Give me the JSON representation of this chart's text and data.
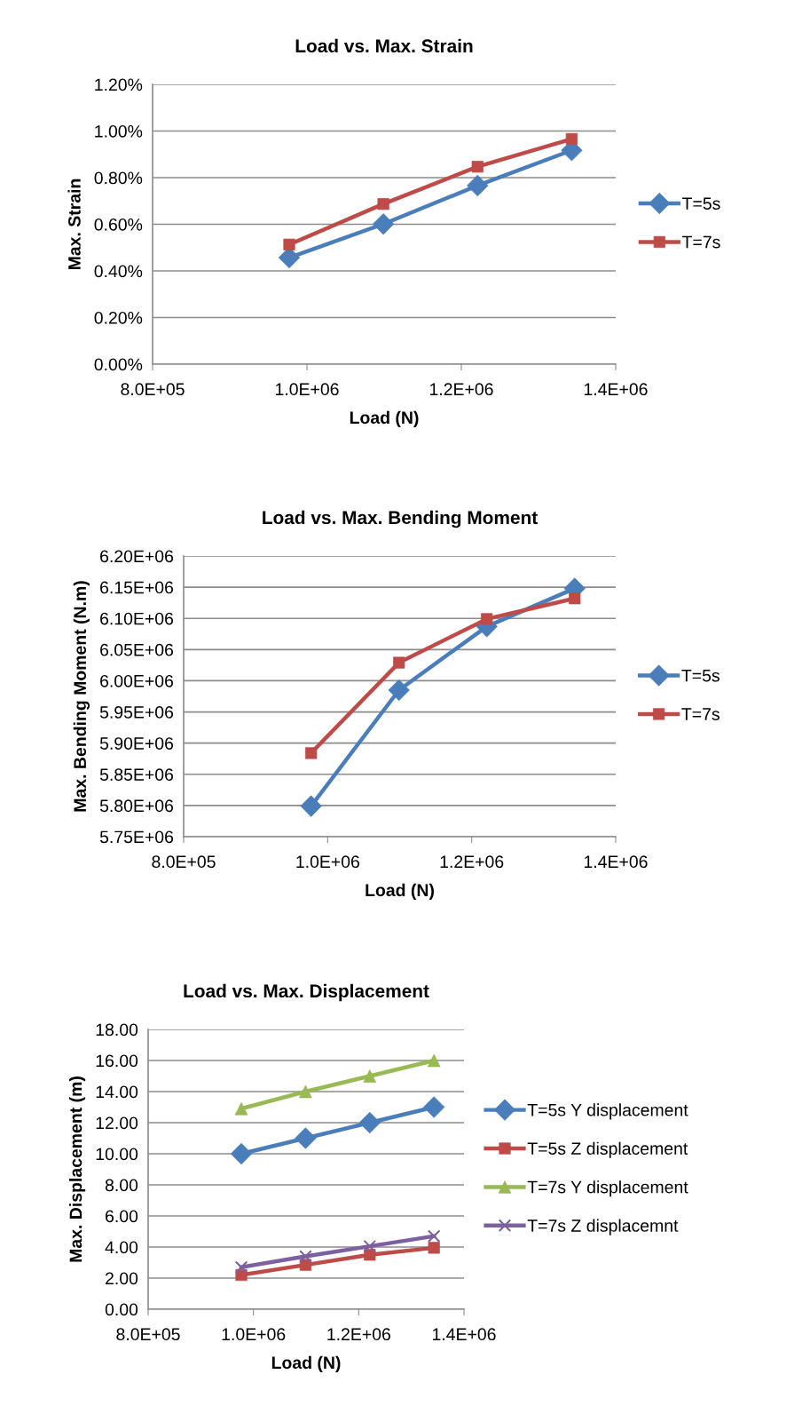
{
  "chart_data": [
    {
      "type": "line",
      "title": "Load vs. Max. Strain",
      "xlabel": "Load (N)",
      "ylabel": "Max. Strain",
      "x": [
        977000,
        1099000,
        1221000,
        1343000
      ],
      "series": [
        {
          "name": "T=5s",
          "color": "#4a7ebb",
          "marker": "diamond",
          "values": [
            0.457,
            0.601,
            0.766,
            0.917
          ]
        },
        {
          "name": "T=7s",
          "color": "#be4b48",
          "marker": "square",
          "values": [
            0.513,
            0.687,
            0.847,
            0.966
          ]
        }
      ],
      "xlim": [
        800000,
        1400000
      ],
      "xticks": [
        {
          "value": 800000,
          "label": "8.0E+05"
        },
        {
          "value": 1000000,
          "label": "1.0E+06"
        },
        {
          "value": 1200000,
          "label": "1.2E+06"
        },
        {
          "value": 1400000,
          "label": "1.4E+06"
        }
      ],
      "ylim": [
        0,
        1.2
      ],
      "yticks": [
        {
          "value": 0,
          "label": "0.00%"
        },
        {
          "value": 0.2,
          "label": "0.20%"
        },
        {
          "value": 0.4,
          "label": "0.40%"
        },
        {
          "value": 0.6,
          "label": "0.60%"
        },
        {
          "value": 0.8,
          "label": "0.80%"
        },
        {
          "value": 1.0,
          "label": "1.00%"
        },
        {
          "value": 1.2,
          "label": "1.20%"
        }
      ],
      "grid": "y",
      "legend": "right"
    },
    {
      "type": "line",
      "title": "Load vs. Max. Bending Moment",
      "xlabel": "Load (N)",
      "ylabel": "Max. Bending Moment (N.m)",
      "x": [
        977000,
        1099000,
        1221000,
        1343000
      ],
      "series": [
        {
          "name": "T=5s",
          "color": "#4a7ebb",
          "marker": "diamond",
          "values": [
            5799000,
            5985000,
            6087000,
            6148000
          ]
        },
        {
          "name": "T=7s",
          "color": "#be4b48",
          "marker": "square",
          "values": [
            5884000,
            6029000,
            6099000,
            6132000
          ]
        }
      ],
      "xlim": [
        800000,
        1400000
      ],
      "xticks": [
        {
          "value": 800000,
          "label": "8.0E+05"
        },
        {
          "value": 1000000,
          "label": "1.0E+06"
        },
        {
          "value": 1200000,
          "label": "1.2E+06"
        },
        {
          "value": 1400000,
          "label": "1.4E+06"
        }
      ],
      "ylim": [
        5750000,
        6200000
      ],
      "yticks": [
        {
          "value": 5750000,
          "label": "5.75E+06"
        },
        {
          "value": 5800000,
          "label": "5.80E+06"
        },
        {
          "value": 5850000,
          "label": "5.85E+06"
        },
        {
          "value": 5900000,
          "label": "5.90E+06"
        },
        {
          "value": 5950000,
          "label": "5.95E+06"
        },
        {
          "value": 6000000,
          "label": "6.00E+06"
        },
        {
          "value": 6050000,
          "label": "6.05E+06"
        },
        {
          "value": 6100000,
          "label": "6.10E+06"
        },
        {
          "value": 6150000,
          "label": "6.15E+06"
        },
        {
          "value": 6200000,
          "label": "6.20E+06"
        }
      ],
      "grid": "y",
      "legend": "right"
    },
    {
      "type": "line",
      "title": "Load vs. Max. Displacement",
      "xlabel": "Load (N)",
      "ylabel": "Max. Displacement (m)",
      "x": [
        977000,
        1099000,
        1221000,
        1343000
      ],
      "series": [
        {
          "name": "T=5s Y displacement",
          "color": "#4a7ebb",
          "marker": "diamond",
          "values": [
            10.0,
            11.0,
            12.0,
            13.0
          ]
        },
        {
          "name": "T=5s Z displacement",
          "color": "#be4b48",
          "marker": "square",
          "values": [
            2.2,
            2.85,
            3.5,
            3.95
          ]
        },
        {
          "name": "T=7s Y displacement",
          "color": "#98b954",
          "marker": "triangle",
          "values": [
            12.9,
            14.0,
            15.0,
            16.0
          ]
        },
        {
          "name": "T=7s Z displacemnt",
          "color": "#7d60a0",
          "marker": "cross",
          "values": [
            2.7,
            3.4,
            4.05,
            4.7
          ]
        }
      ],
      "xlim": [
        800000,
        1400000
      ],
      "xticks": [
        {
          "value": 800000,
          "label": "8.0E+05"
        },
        {
          "value": 1000000,
          "label": "1.0E+06"
        },
        {
          "value": 1200000,
          "label": "1.2E+06"
        },
        {
          "value": 1400000,
          "label": "1.4E+06"
        }
      ],
      "ylim": [
        0,
        18
      ],
      "yticks": [
        {
          "value": 0,
          "label": "0.00"
        },
        {
          "value": 2,
          "label": "2.00"
        },
        {
          "value": 4,
          "label": "4.00"
        },
        {
          "value": 6,
          "label": "6.00"
        },
        {
          "value": 8,
          "label": "8.00"
        },
        {
          "value": 10,
          "label": "10.00"
        },
        {
          "value": 12,
          "label": "12.00"
        },
        {
          "value": 14,
          "label": "14.00"
        },
        {
          "value": 16,
          "label": "16.00"
        },
        {
          "value": 18,
          "label": "18.00"
        }
      ],
      "grid": "y",
      "legend": "right"
    }
  ]
}
